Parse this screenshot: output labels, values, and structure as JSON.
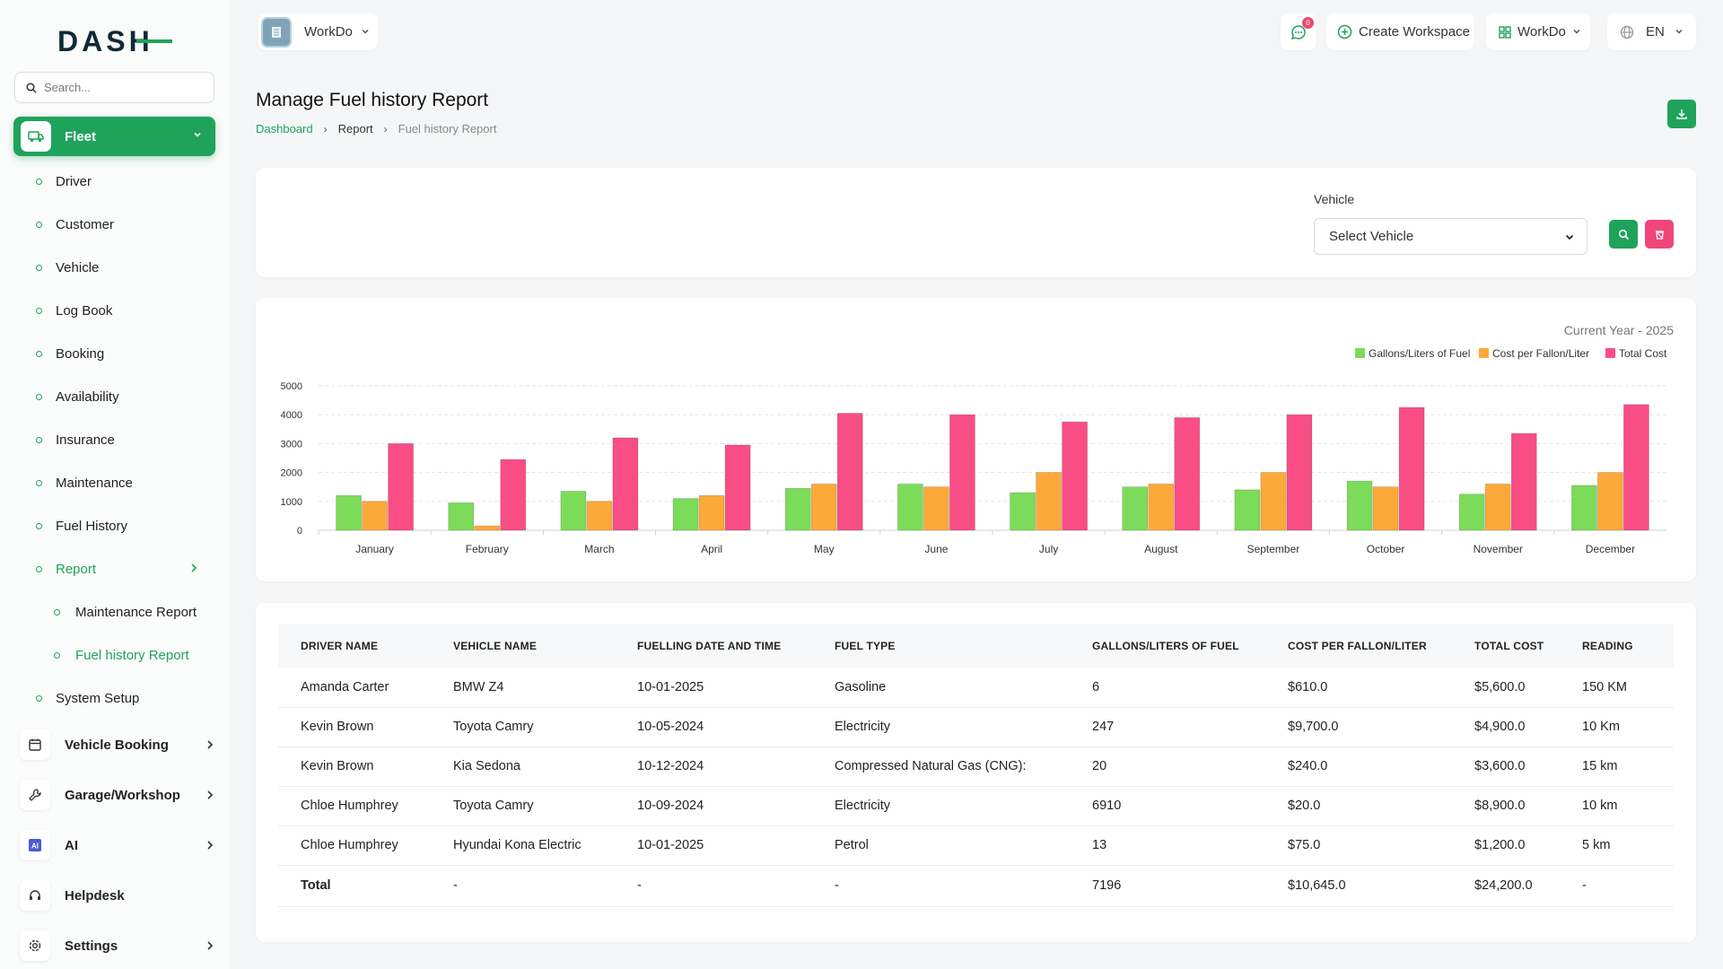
{
  "app": {
    "logo_text": "DASH"
  },
  "sidebar": {
    "search_placeholder": "Search...",
    "active_module": "Fleet",
    "fleet_items": [
      "Driver",
      "Customer",
      "Vehicle",
      "Log Book",
      "Booking",
      "Availability",
      "Insurance",
      "Maintenance",
      "Fuel History"
    ],
    "report": {
      "label": "Report",
      "items": [
        "Maintenance Report",
        "Fuel history Report"
      ]
    },
    "system_setup": "System Setup",
    "modules": [
      "Vehicle Booking",
      "Garage/Workshop",
      "AI",
      "Helpdesk",
      "Settings"
    ]
  },
  "header": {
    "workspace": "WorkDo",
    "notifications": "0",
    "create_workspace": "Create Workspace",
    "company": "WorkDo",
    "language": "EN"
  },
  "page": {
    "title": "Manage Fuel history Report",
    "breadcrumbs": [
      "Dashboard",
      "Report",
      "Fuel history Report"
    ]
  },
  "filter": {
    "label": "Vehicle",
    "value": "Select Vehicle"
  },
  "chart_caption": "Current Year - 2025",
  "chart_data": {
    "type": "bar",
    "categories": [
      "January",
      "February",
      "March",
      "April",
      "May",
      "June",
      "July",
      "August",
      "September",
      "October",
      "November",
      "December"
    ],
    "series": [
      {
        "name": "Gallons/Liters of Fuel",
        "color": "#7ddb5a",
        "values": [
          1200,
          950,
          1350,
          1100,
          1450,
          1600,
          1300,
          1500,
          1400,
          1700,
          1250,
          1550
        ]
      },
      {
        "name": "Cost per Fallon/Liter",
        "color": "#fda93a",
        "values": [
          1000,
          150,
          1000,
          1200,
          1600,
          1500,
          2000,
          1600,
          2000,
          1500,
          1600,
          2000
        ]
      },
      {
        "name": "Total Cost",
        "color": "#f94d86",
        "values": [
          3000,
          2450,
          3200,
          2950,
          4050,
          4000,
          3750,
          3900,
          4000,
          4250,
          3350,
          4350
        ]
      }
    ],
    "ylim": [
      0,
      5000
    ],
    "yticks": [
      "0",
      "1000",
      "2000",
      "3000",
      "4000",
      "5000"
    ],
    "legend": "top-right",
    "grid": true
  },
  "table": {
    "columns": [
      "DRIVER NAME",
      "VEHICLE NAME",
      "FUELLING DATE AND TIME",
      "FUEL TYPE",
      "GALLONS/LITERS OF FUEL",
      "COST PER FALLON/LITER",
      "TOTAL COST",
      "READING"
    ],
    "rows": [
      [
        "Amanda Carter",
        "BMW Z4",
        "10-01-2025",
        "Gasoline",
        "6",
        "$610.0",
        "$5,600.0",
        "150 KM"
      ],
      [
        "Kevin Brown",
        "Toyota Camry",
        "10-05-2024",
        "Electricity",
        "247",
        "$9,700.0",
        "$4,900.0",
        "10 Km"
      ],
      [
        "Kevin Brown",
        "Kia Sedona",
        "10-12-2024",
        "Compressed Natural Gas (CNG):",
        "20",
        "$240.0",
        "$3,600.0",
        "15 km"
      ],
      [
        "Chloe Humphrey",
        "Toyota Camry",
        "10-09-2024",
        "Electricity",
        "6910",
        "$20.0",
        "$8,900.0",
        "10 km"
      ],
      [
        "Chloe Humphrey",
        "Hyundai Kona Electric",
        "10-01-2025",
        "Petrol",
        "13",
        "$75.0",
        "$1,200.0",
        "5 km"
      ]
    ],
    "total": [
      "Total",
      "-",
      "-",
      "-",
      "7196",
      "$10,645.0",
      "$24,200.0",
      "-"
    ]
  }
}
